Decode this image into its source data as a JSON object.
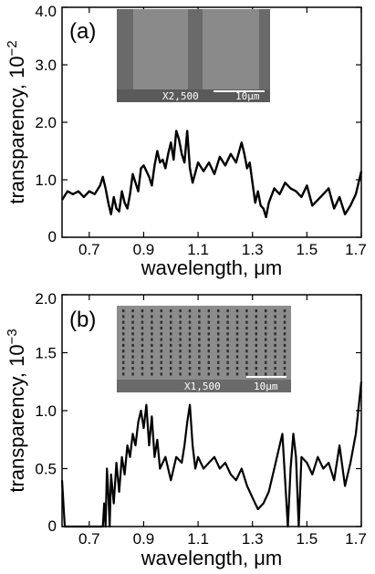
{
  "chart_data": [
    {
      "type": "line",
      "panel_label": "(a)",
      "xlabel": "wavelength, μm",
      "ylabel": "transparency, 10",
      "ylabel_exponent": "−2",
      "xlim": [
        0.6,
        1.7
      ],
      "ylim": [
        0,
        4
      ],
      "xticks": [
        0.7,
        0.9,
        1.1,
        1.3,
        1.5,
        1.7
      ],
      "xtick_labels": [
        "0.7",
        "0.9",
        "1.1",
        "1.3",
        "1.5",
        "1.7"
      ],
      "yticks": [
        0,
        1,
        2,
        3,
        4
      ],
      "ytick_labels": [
        "0",
        "1.0",
        "2.0",
        "3.0",
        "4.0"
      ],
      "grid": false,
      "line_color": "#000000",
      "inset": {
        "magnification": "X2,500",
        "scale_label": "10",
        "scale_unit": "μm",
        "layout": "two-stripes"
      },
      "series": [
        {
          "x": [
            0.6,
            0.62,
            0.64,
            0.66,
            0.68,
            0.7,
            0.72,
            0.74,
            0.75,
            0.76,
            0.77,
            0.78,
            0.79,
            0.8,
            0.81,
            0.82,
            0.83,
            0.84,
            0.85,
            0.86,
            0.87,
            0.88,
            0.89,
            0.9,
            0.92,
            0.93,
            0.94,
            0.95,
            0.96,
            0.97,
            0.98,
            0.99,
            1.0,
            1.01,
            1.02,
            1.03,
            1.04,
            1.05,
            1.06,
            1.07,
            1.08,
            1.1,
            1.12,
            1.14,
            1.16,
            1.18,
            1.2,
            1.22,
            1.24,
            1.26,
            1.27,
            1.28,
            1.29,
            1.3,
            1.31,
            1.32,
            1.33,
            1.34,
            1.35,
            1.36,
            1.38,
            1.4,
            1.42,
            1.44,
            1.46,
            1.48,
            1.5,
            1.52,
            1.54,
            1.56,
            1.58,
            1.6,
            1.62,
            1.64,
            1.66,
            1.68,
            1.7
          ],
          "y": [
            0.65,
            0.8,
            0.75,
            0.8,
            0.7,
            0.8,
            0.75,
            0.9,
            1.05,
            0.85,
            0.6,
            0.4,
            0.7,
            0.5,
            0.45,
            0.8,
            0.6,
            0.5,
            0.75,
            1.1,
            0.95,
            0.8,
            1.2,
            1.25,
            1.05,
            0.9,
            1.25,
            1.5,
            1.3,
            1.35,
            1.2,
            1.45,
            1.65,
            1.35,
            1.85,
            1.7,
            1.45,
            1.3,
            1.85,
            1.2,
            0.95,
            1.3,
            1.15,
            1.3,
            1.1,
            1.4,
            1.25,
            1.45,
            1.3,
            1.65,
            1.45,
            1.2,
            1.3,
            0.95,
            0.6,
            0.8,
            0.55,
            0.5,
            0.35,
            0.6,
            0.85,
            0.75,
            0.95,
            0.85,
            0.8,
            0.7,
            0.9,
            0.55,
            0.65,
            0.75,
            0.85,
            0.5,
            0.7,
            0.4,
            0.55,
            0.75,
            1.15
          ]
        }
      ]
    },
    {
      "type": "line",
      "panel_label": "(b)",
      "xlabel": "wavelength, μm",
      "ylabel": "transparency, 10",
      "ylabel_exponent": "−3",
      "xlim": [
        0.6,
        1.7
      ],
      "ylim": [
        0,
        2
      ],
      "xticks": [
        0.7,
        0.9,
        1.1,
        1.3,
        1.5,
        1.7
      ],
      "xtick_labels": [
        "0.7",
        "0.9",
        "1.1",
        "1.3",
        "1.5",
        "1.7"
      ],
      "yticks": [
        0,
        0.5,
        1,
        1.5,
        2
      ],
      "ytick_labels": [
        "0",
        "0.5",
        "1.0",
        "1.5",
        "2.0"
      ],
      "grid": false,
      "line_color": "#000000",
      "inset": {
        "magnification": "X1,500",
        "scale_label": "10",
        "scale_unit": "μm",
        "layout": "hole-array"
      },
      "series": [
        {
          "x": [
            0.6,
            0.61,
            0.75,
            0.755,
            0.76,
            0.765,
            0.77,
            0.775,
            0.78,
            0.79,
            0.8,
            0.81,
            0.82,
            0.83,
            0.84,
            0.85,
            0.86,
            0.87,
            0.88,
            0.89,
            0.9,
            0.91,
            0.92,
            0.93,
            0.94,
            0.95,
            0.96,
            0.98,
            1.0,
            1.02,
            1.04,
            1.05,
            1.06,
            1.07,
            1.08,
            1.09,
            1.1,
            1.12,
            1.14,
            1.16,
            1.18,
            1.2,
            1.22,
            1.24,
            1.26,
            1.28,
            1.3,
            1.32,
            1.34,
            1.36,
            1.38,
            1.4,
            1.41,
            1.42,
            1.43,
            1.44,
            1.45,
            1.46,
            1.47,
            1.48,
            1.5,
            1.52,
            1.54,
            1.56,
            1.58,
            1.6,
            1.62,
            1.64,
            1.66,
            1.68,
            1.7
          ],
          "y": [
            0.4,
            0,
            0,
            0.2,
            0,
            0.5,
            0.3,
            0,
            0.45,
            0.2,
            0.55,
            0.3,
            0.6,
            0.45,
            0.7,
            0.6,
            0.8,
            0.7,
            0.9,
            1.0,
            0.85,
            1.05,
            0.7,
            0.95,
            0.6,
            0.75,
            0.5,
            0.6,
            0.4,
            0.6,
            0.55,
            0.7,
            0.9,
            1.05,
            0.7,
            0.5,
            0.6,
            0.5,
            0.55,
            0.6,
            0.5,
            0.55,
            0.45,
            0.4,
            0.5,
            0.35,
            0.25,
            0.15,
            0.2,
            0.3,
            0.5,
            0.7,
            0.8,
            0.4,
            0.0,
            0.5,
            0.8,
            0.6,
            0.0,
            0.6,
            0.55,
            0.45,
            0.6,
            0.5,
            0.55,
            0.4,
            0.7,
            0.35,
            0.55,
            0.8,
            1.25
          ]
        }
      ]
    }
  ]
}
